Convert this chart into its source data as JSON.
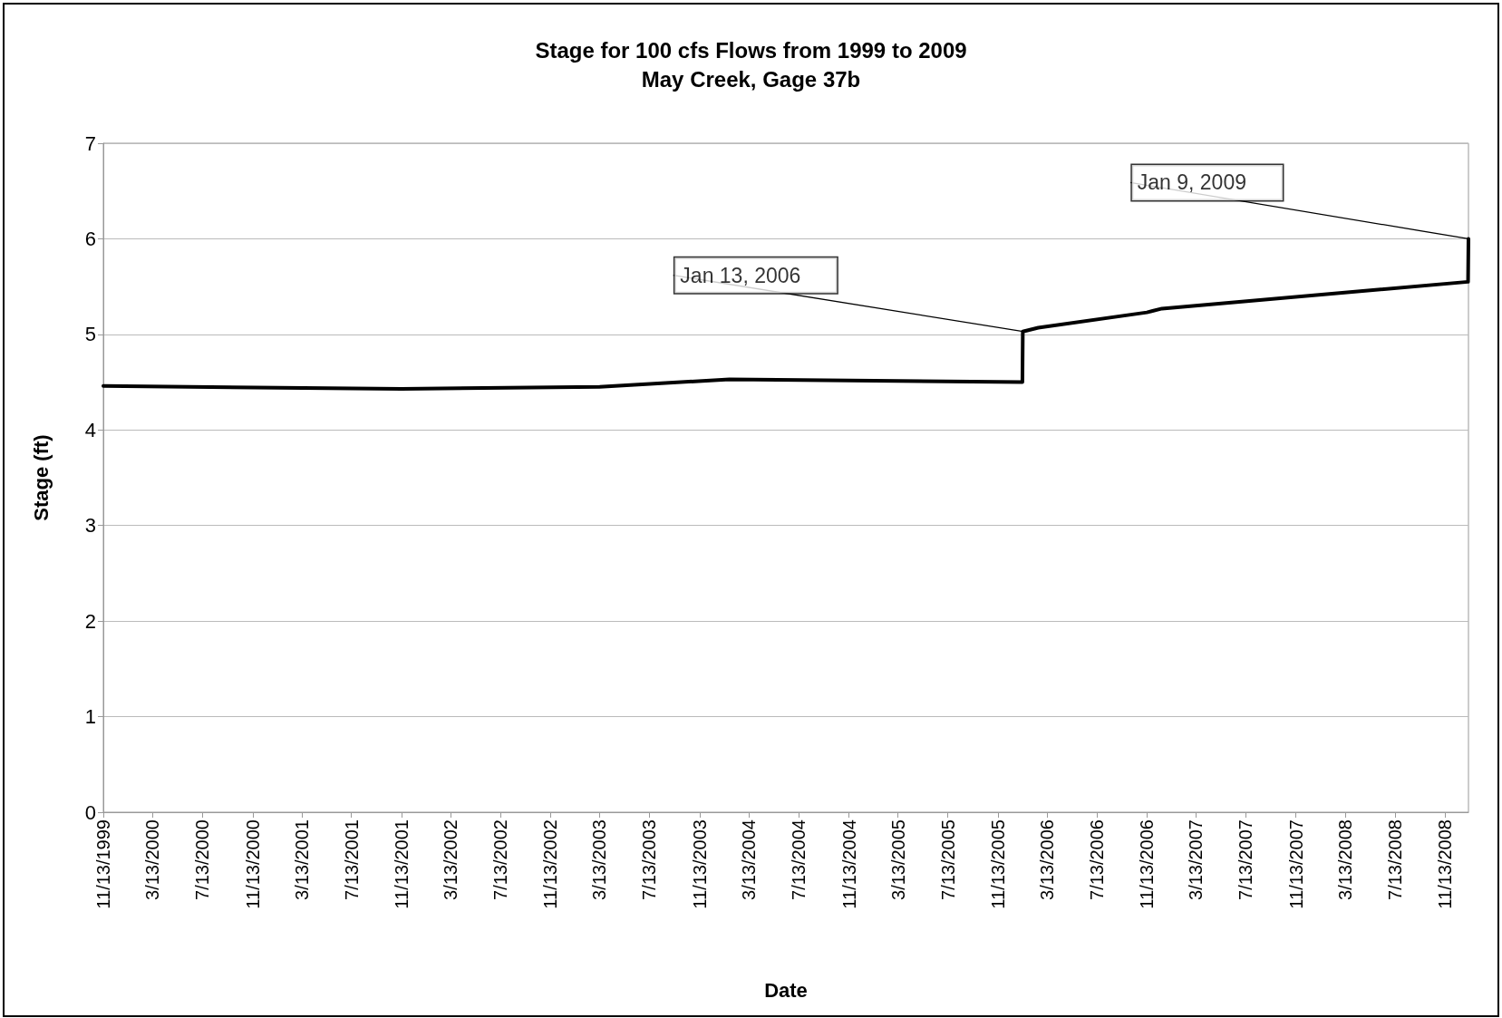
{
  "chart_data": {
    "type": "line",
    "title": "Stage for 100 cfs Flows from 1999 to 2009",
    "subtitle": "May Creek, Gage 37b",
    "xlabel": "Date",
    "ylabel": "Stage (ft)",
    "x": [
      "1999-11-13",
      "2001-11-13",
      "2003-03-13",
      "2004-01-25",
      "2006-01-12",
      "2006-01-13",
      "2006-02-20",
      "2006-11-13",
      "2006-12-20",
      "2009-01-08",
      "2009-01-09"
    ],
    "series": [
      {
        "color": "#000000",
        "values": [
          4.46,
          4.43,
          4.45,
          4.53,
          4.5,
          5.03,
          5.07,
          5.23,
          5.27,
          5.55,
          6.0
        ]
      }
    ],
    "xlim": [
      "1999-11-13",
      "2009-01-09"
    ],
    "xticks": [
      {
        "value": "1999-11-13",
        "label": "11/13/1999"
      },
      {
        "value": "2000-03-13",
        "label": "3/13/2000"
      },
      {
        "value": "2000-07-13",
        "label": "7/13/2000"
      },
      {
        "value": "2000-11-13",
        "label": "11/13/2000"
      },
      {
        "value": "2001-03-13",
        "label": "3/13/2001"
      },
      {
        "value": "2001-07-13",
        "label": "7/13/2001"
      },
      {
        "value": "2001-11-13",
        "label": "11/13/2001"
      },
      {
        "value": "2002-03-13",
        "label": "3/13/2002"
      },
      {
        "value": "2002-07-13",
        "label": "7/13/2002"
      },
      {
        "value": "2002-11-13",
        "label": "11/13/2002"
      },
      {
        "value": "2003-03-13",
        "label": "3/13/2003"
      },
      {
        "value": "2003-07-13",
        "label": "7/13/2003"
      },
      {
        "value": "2003-11-13",
        "label": "11/13/2003"
      },
      {
        "value": "2004-03-13",
        "label": "3/13/2004"
      },
      {
        "value": "2004-07-13",
        "label": "7/13/2004"
      },
      {
        "value": "2004-11-13",
        "label": "11/13/2004"
      },
      {
        "value": "2005-03-13",
        "label": "3/13/2005"
      },
      {
        "value": "2005-07-13",
        "label": "7/13/2005"
      },
      {
        "value": "2005-11-13",
        "label": "11/13/2005"
      },
      {
        "value": "2006-03-13",
        "label": "3/13/2006"
      },
      {
        "value": "2006-07-13",
        "label": "7/13/2006"
      },
      {
        "value": "2006-11-13",
        "label": "11/13/2006"
      },
      {
        "value": "2007-03-13",
        "label": "3/13/2007"
      },
      {
        "value": "2007-07-13",
        "label": "7/13/2007"
      },
      {
        "value": "2007-11-13",
        "label": "11/13/2007"
      },
      {
        "value": "2008-03-13",
        "label": "3/13/2008"
      },
      {
        "value": "2008-07-13",
        "label": "7/13/2008"
      },
      {
        "value": "2008-11-13",
        "label": "11/13/2008"
      }
    ],
    "ylim": [
      0,
      7
    ],
    "yticks": [
      0,
      1,
      2,
      3,
      4,
      5,
      6,
      7
    ],
    "grid": "y",
    "marker": "none",
    "line_style": "solid",
    "annotations": [
      {
        "text": "Jan 13, 2006",
        "x": "2006-01-13",
        "y": 5.03
      },
      {
        "text": "Jan 9, 2009",
        "x": "2009-01-09",
        "y": 6.0
      }
    ]
  }
}
